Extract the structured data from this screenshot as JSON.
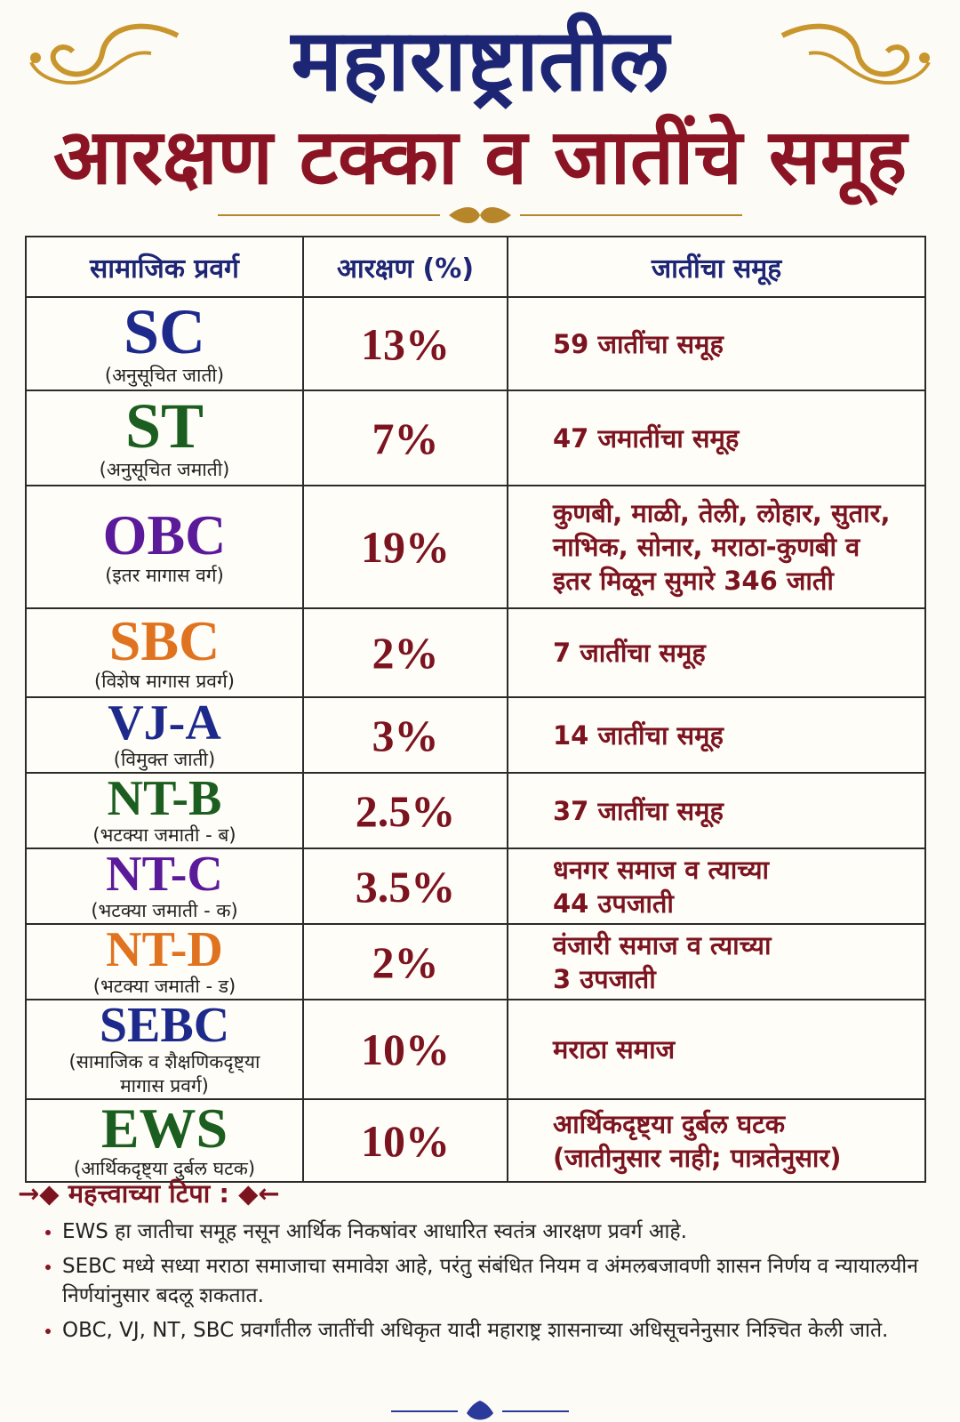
{
  "header": {
    "title_line1": "महाराष्ट्रातील",
    "title_line2": "आरक्षण टक्का व जातींचे समूह"
  },
  "table": {
    "headers": [
      "सामाजिक प्रवर्ग",
      "आरक्षण (%)",
      "जातींचा समूह"
    ],
    "rows": [
      {
        "code": "SC",
        "color": "#1d2a8c",
        "name": [
          "(अनुसूचित जाती)"
        ],
        "percent": "13%",
        "groups": [
          "59 जातींचा समूह"
        ]
      },
      {
        "code": "ST",
        "color": "#1b5e20",
        "name": [
          "(अनुसूचित जमाती)"
        ],
        "percent": "7%",
        "groups": [
          "47 जमातींचा समूह"
        ]
      },
      {
        "code": "OBC",
        "color": "#5b1a9a",
        "name": [
          "(इतर मागास वर्ग)"
        ],
        "percent": "19%",
        "groups": [
          "कुणबी, माळी, तेली, लोहार, सुतार,",
          "नाभिक, सोनार, मराठा-कुणबी व",
          "इतर मिळून सुमारे 346 जाती"
        ]
      },
      {
        "code": "SBC",
        "color": "#e0731f",
        "name": [
          "(विशेष मागास प्रवर्ग)"
        ],
        "percent": "2%",
        "groups": [
          "7 जातींचा समूह"
        ]
      },
      {
        "code": "VJ-A",
        "color": "#1d2a8c",
        "name": [
          "(विमुक्त जाती)"
        ],
        "percent": "3%",
        "groups": [
          "14 जातींचा समूह"
        ]
      },
      {
        "code": "NT-B",
        "color": "#1b5e20",
        "name": [
          "(भटक्या जमाती - ब)"
        ],
        "percent": "2.5%",
        "groups": [
          "37 जातींचा समूह"
        ]
      },
      {
        "code": "NT-C",
        "color": "#5b1a9a",
        "name": [
          "(भटक्या जमाती - क)"
        ],
        "percent": "3.5%",
        "groups": [
          "धनगर समाज व त्याच्या",
          "44 उपजाती"
        ]
      },
      {
        "code": "NT-D",
        "color": "#e0731f",
        "name": [
          "(भटक्या जमाती - ड)"
        ],
        "percent": "2%",
        "groups": [
          "वंजारी समाज व त्याच्या",
          "3 उपजाती"
        ]
      },
      {
        "code": "SEBC",
        "color": "#1d2a8c",
        "name": [
          "(सामाजिक व शैक्षणिकदृष्ट्या",
          "मागास प्रवर्ग)"
        ],
        "percent": "10%",
        "groups": [
          "मराठा समाज"
        ]
      },
      {
        "code": "EWS",
        "color": "#1b5e20",
        "name": [
          "(आर्थिकदृष्ट्या दुर्बल घटक)"
        ],
        "percent": "10%",
        "groups": [
          "आर्थिकदृष्ट्या दुर्बल घटक",
          "(जातीनुसार नाही; पात्रतेनुसार)"
        ]
      }
    ]
  },
  "notes": {
    "heading": "महत्त्वाच्या टिपा :",
    "items": [
      "EWS हा जातीचा समूह नसून आर्थिक निकषांवर आधारित स्वतंत्र आरक्षण प्रवर्ग आहे.",
      "SEBC मध्ये सध्या मराठा समाजाचा समावेश आहे, परंतु संबंधित नियम व अंमलबजावणी शासन निर्णय व न्यायालयीन निर्णयांनुसार बदलू शकतात.",
      "OBC, VJ, NT, SBC प्रवर्गांतील जातींची अधिकृत यादी महाराष्ट्र शासनाच्या अधिसूचनेनुसार निश्चित केली जाते."
    ]
  }
}
